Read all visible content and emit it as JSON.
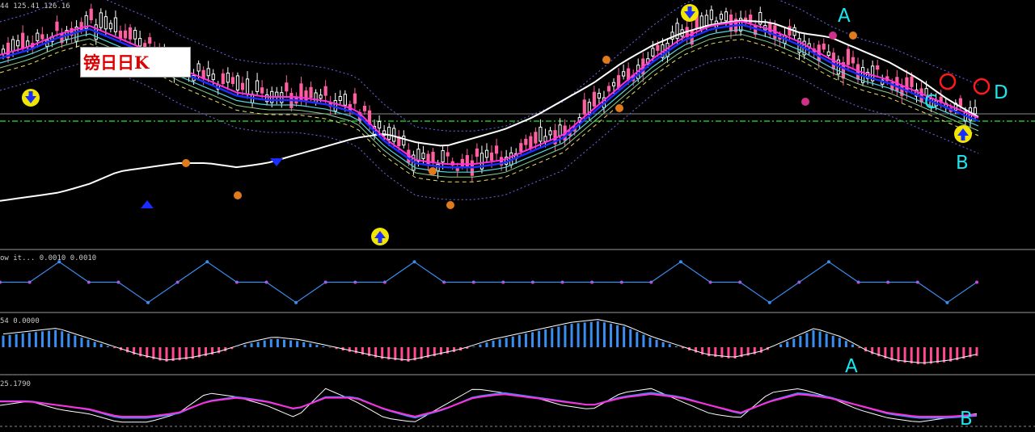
{
  "title": "镑日日K",
  "panels": {
    "main": {
      "header": "44 125.41 126.16"
    },
    "signal": {
      "header": "ow it... 0.0010 0.0010"
    },
    "macd": {
      "header": "54 0.0000"
    },
    "stoch": {
      "header": "25.1790"
    }
  },
  "annotations": {
    "main_a": "A",
    "main_b": "B",
    "main_c": "C",
    "main_d": "D",
    "macd_a": "A",
    "stoch_b": "B"
  },
  "colors": {
    "background": "#000000",
    "up_candle": "#ffffff",
    "down_candle": "#ff5fa0",
    "ma_white": "#ffffff",
    "ma_blue": "#1a2dff",
    "ma_magenta": "#ff2ee0",
    "ma_cyan": "#4fd8e0",
    "ma_yellow": "#e8e060",
    "ma_green": "#8cd08c",
    "band": "#6a6af0",
    "level_green": "#20c020",
    "annotation": "#19e6ee",
    "circle": "#ff1a1a",
    "hist_pos": "#3a8ef0",
    "hist_neg": "#ff4a90"
  },
  "chart_data": {
    "type": "line",
    "note_panels": [
      "price candles with moving averages and bands",
      "signal step line",
      "histogram oscillator",
      "stochastic oscillator"
    ],
    "ma_white_curve": [
      0.88,
      0.86,
      0.84,
      0.8,
      0.74,
      0.72,
      0.7,
      0.7,
      0.72,
      0.7,
      0.66,
      0.62,
      0.58,
      0.56,
      0.6,
      0.62,
      0.58,
      0.54,
      0.48,
      0.4,
      0.32,
      0.22,
      0.14,
      0.08,
      0.04,
      0.02,
      0.03,
      0.08,
      0.1,
      0.16,
      0.22,
      0.3,
      0.4,
      0.48
    ],
    "ma_blue_curve": [
      0.2,
      0.16,
      0.1,
      0.06,
      0.12,
      0.18,
      0.26,
      0.32,
      0.38,
      0.4,
      0.4,
      0.42,
      0.46,
      0.6,
      0.7,
      0.72,
      0.72,
      0.7,
      0.64,
      0.58,
      0.46,
      0.34,
      0.22,
      0.12,
      0.06,
      0.04,
      0.08,
      0.14,
      0.22,
      0.28,
      0.32,
      0.38,
      0.44,
      0.5
    ],
    "signal_steps": [
      0.5,
      0.5,
      0.1,
      0.5,
      0.5,
      0.9,
      0.5,
      0.1,
      0.5,
      0.5,
      0.9,
      0.5,
      0.5,
      0.5,
      0.1,
      0.5,
      0.5,
      0.5,
      0.5,
      0.5,
      0.5,
      0.5,
      0.5,
      0.1,
      0.5,
      0.5,
      0.9,
      0.5,
      0.1,
      0.5,
      0.5,
      0.5,
      0.9,
      0.5
    ],
    "macd_hist": [
      0.4,
      0.5,
      0.6,
      0.3,
      0.0,
      -0.3,
      -0.5,
      -0.4,
      -0.2,
      0.1,
      0.3,
      0.2,
      0.0,
      -0.2,
      -0.4,
      -0.5,
      -0.3,
      -0.1,
      0.2,
      0.4,
      0.6,
      0.8,
      0.9,
      0.7,
      0.3,
      0.0,
      -0.3,
      -0.4,
      -0.2,
      0.2,
      0.6,
      0.3,
      -0.2,
      -0.5,
      -0.6,
      -0.5,
      -0.3
    ],
    "stoch_k": [
      0.5,
      0.6,
      0.4,
      0.3,
      0.1,
      0.1,
      0.3,
      0.8,
      0.7,
      0.5,
      0.2,
      0.9,
      0.6,
      0.2,
      0.1,
      0.5,
      0.9,
      0.8,
      0.7,
      0.5,
      0.4,
      0.8,
      0.9,
      0.6,
      0.3,
      0.2,
      0.8,
      0.9,
      0.7,
      0.4,
      0.2,
      0.1,
      0.2,
      0.3
    ],
    "stoch_d": [
      0.6,
      0.6,
      0.5,
      0.4,
      0.2,
      0.2,
      0.3,
      0.6,
      0.7,
      0.6,
      0.4,
      0.7,
      0.7,
      0.4,
      0.2,
      0.4,
      0.7,
      0.8,
      0.7,
      0.6,
      0.5,
      0.7,
      0.8,
      0.7,
      0.5,
      0.3,
      0.6,
      0.8,
      0.7,
      0.5,
      0.3,
      0.2,
      0.2,
      0.25
    ]
  }
}
